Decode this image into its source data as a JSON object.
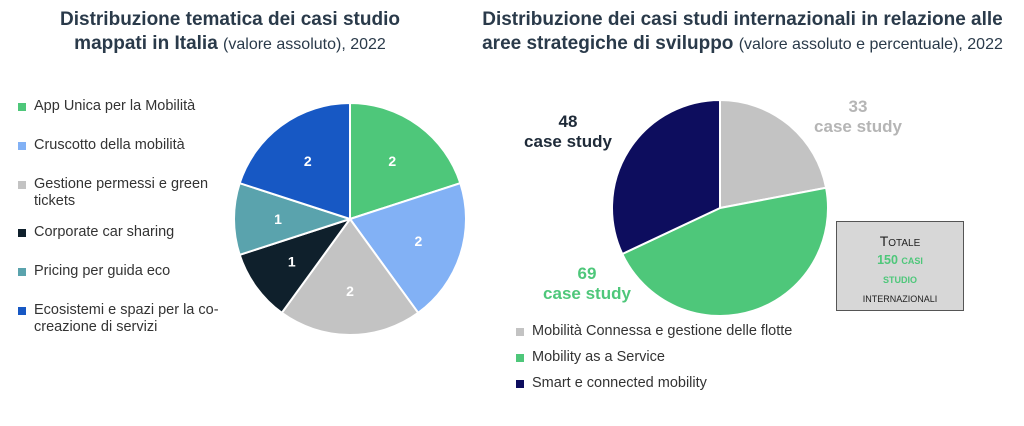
{
  "left": {
    "title_bold": "Distribuzione tematica dei casi studio mappati in Italia",
    "title_normal": "(valore assoluto), 2022"
  },
  "right": {
    "title_bold": "Distribuzione dei casi studi internazionali in relazione alle aree strategiche di sviluppo",
    "title_normal": "(valore assoluto e percentuale), 2022",
    "callouts": {
      "c48": [
        "48",
        "case study"
      ],
      "c33": [
        "33",
        "case study"
      ],
      "c69": [
        "69",
        "case study"
      ]
    },
    "total": {
      "line1": "Totale",
      "line2": "150 casi",
      "line3": "studio",
      "line4": "internazionali"
    }
  },
  "chart_data": [
    {
      "type": "pie",
      "title": "Distribuzione tematica dei casi studio mappati in Italia (valore assoluto), 2022",
      "categories": [
        "App Unica per la Mobilità",
        "Cruscotto della mobilità",
        "Gestione permessi e green tickets",
        "Corporate car sharing",
        "Pricing per guida eco",
        "Ecosistemi e spazi per la co-creazione di servizi"
      ],
      "values": [
        2,
        2,
        2,
        1,
        1,
        2
      ],
      "data_labels": [
        "2",
        "2",
        "2",
        "1",
        "1",
        "2"
      ],
      "colors": [
        "#4ec77a",
        "#82b1f5",
        "#c3c3c3",
        "#0f202c",
        "#5aa3ad",
        "#1758c4"
      ],
      "legend": "left"
    },
    {
      "type": "pie",
      "title": "Distribuzione dei casi studi internazionali in relazione alle aree strategiche di sviluppo (valore assoluto e percentuale), 2022",
      "categories": [
        "Mobilità Connessa e gestione delle flotte",
        "Mobility as a Service",
        "Smart e connected mobility"
      ],
      "values": [
        33,
        69,
        48
      ],
      "colors": [
        "#c3c3c3",
        "#4ec77a",
        "#0d0d5e"
      ],
      "legend": "bottom"
    }
  ]
}
